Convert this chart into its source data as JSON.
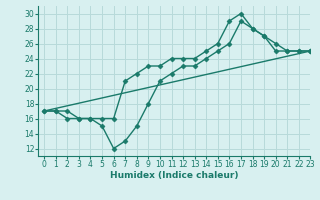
{
  "line1_x": [
    0,
    1,
    2,
    3,
    4,
    5,
    6,
    7,
    8,
    9,
    10,
    11,
    12,
    13,
    14,
    15,
    16,
    17,
    18,
    19,
    20,
    21,
    22,
    23
  ],
  "line1_y": [
    17,
    17,
    17,
    16,
    16,
    16,
    16,
    21,
    22,
    23,
    23,
    24,
    24,
    24,
    25,
    26,
    29,
    30,
    28,
    27,
    26,
    25,
    25,
    25
  ],
  "line2_x": [
    0,
    23
  ],
  "line2_y": [
    17,
    25
  ],
  "line3_x": [
    0,
    1,
    2,
    3,
    4,
    5,
    6,
    7,
    8,
    9,
    10,
    11,
    12,
    13,
    14,
    15,
    16,
    17,
    18,
    19,
    20,
    21,
    22,
    23
  ],
  "line3_y": [
    17,
    17,
    16,
    16,
    16,
    15,
    12,
    13,
    15,
    18,
    21,
    22,
    23,
    23,
    24,
    25,
    26,
    29,
    28,
    27,
    25,
    25,
    25,
    25
  ],
  "line_color": "#1a7a6a",
  "bg_color": "#d8f0f0",
  "grid_color": "#b8dada",
  "xlabel": "Humidex (Indice chaleur)",
  "ylim": [
    11,
    31
  ],
  "xlim": [
    -0.5,
    23
  ],
  "yticks": [
    12,
    14,
    16,
    18,
    20,
    22,
    24,
    26,
    28,
    30
  ],
  "xticks": [
    0,
    1,
    2,
    3,
    4,
    5,
    6,
    7,
    8,
    9,
    10,
    11,
    12,
    13,
    14,
    15,
    16,
    17,
    18,
    19,
    20,
    21,
    22,
    23
  ],
  "marker": "D",
  "markersize": 2.5,
  "linewidth": 1.0,
  "tick_fontsize": 5.5,
  "xlabel_fontsize": 6.5
}
